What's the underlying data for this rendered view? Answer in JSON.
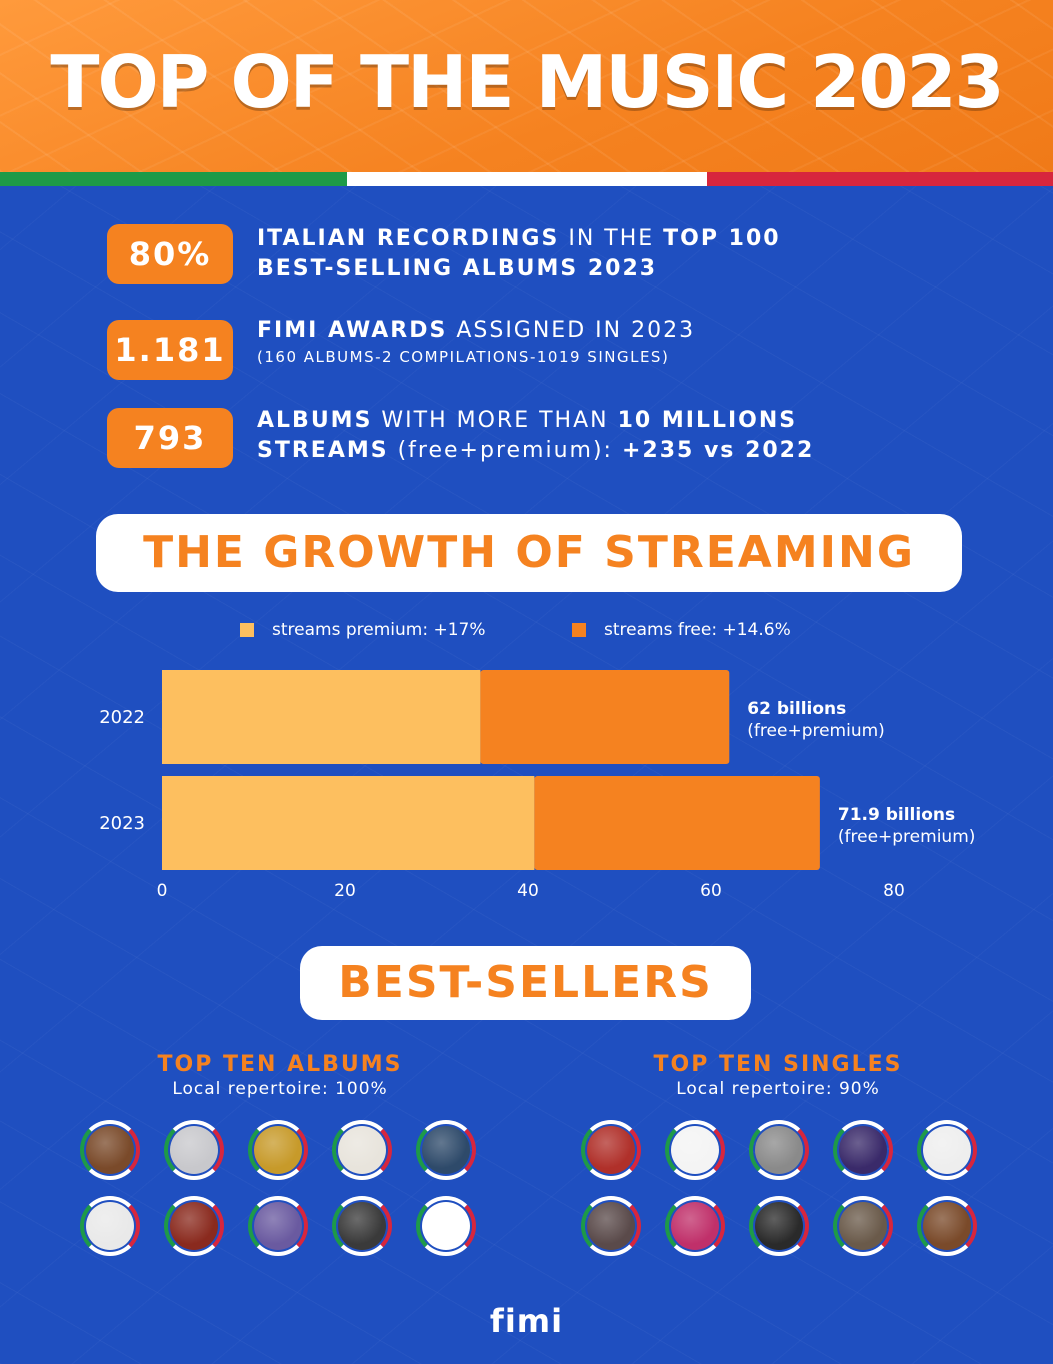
{
  "header": {
    "title": "TOP OF THE MUSIC 2023"
  },
  "stats": [
    {
      "value": "80%",
      "strong1": "ITALIAN RECORDINGS",
      "normal1": " IN THE ",
      "strong2": "TOP 100",
      "line2": "BEST-SELLING ALBUMS 2023"
    },
    {
      "value": "1.181",
      "strong1": "FIMI AWARDS",
      "normal1": " ASSIGNED IN 2023",
      "sub": "(160 ALBUMS-2 COMPILATIONS-1019 SINGLES)"
    },
    {
      "value": "793",
      "strong1": "ALBUMS",
      "normal1": " WITH MORE THAN ",
      "strong2": "10 MILLIONS",
      "line2a": "STREAMS",
      "line2b": " (free+premium): ",
      "line2c": "+235 vs 2022"
    }
  ],
  "growth_title": "THE GROWTH OF STREAMING",
  "legend": [
    {
      "label": "streams premium: +17%",
      "color": "#fdbf5f"
    },
    {
      "label": "streams free: +14.6%",
      "color": "#f58220"
    }
  ],
  "chart_data": {
    "type": "bar",
    "orientation": "horizontal",
    "stacked": true,
    "categories": [
      "2022",
      "2023"
    ],
    "series": [
      {
        "name": "streams premium: +17%",
        "values": [
          34.8,
          40.7
        ],
        "color": "#fdbf5f"
      },
      {
        "name": "streams free: +14.6%",
        "values": [
          27.2,
          31.2
        ],
        "color": "#f58220"
      }
    ],
    "totals": [
      62,
      71.9
    ],
    "data_labels": [
      {
        "line1": "62 billions",
        "line2": "(free+premium)"
      },
      {
        "line1": "71.9 billions",
        "line2": "(free+premium)"
      }
    ],
    "xlim": [
      0,
      80
    ],
    "xticks": [
      0,
      20,
      40,
      60,
      80
    ],
    "grid": false
  },
  "best_title": "BEST-SELLERS",
  "albums": {
    "title": "TOP TEN ALBUMS",
    "subtitle": "Local repertoire: 100%"
  },
  "singles": {
    "title": "TOP TEN SINGLES",
    "subtitle": "Local repertoire: 90%"
  },
  "album_covers": [
    "#7a4a2a",
    "#c8c8cc",
    "#c79a2a",
    "#e8e4dc",
    "#2e4a6a",
    "#e9e9e9",
    "#8a2a1e",
    "#6a5aa0",
    "#3a3a3a",
    "#ffffff"
  ],
  "single_covers": [
    "#b0302a",
    "#f4f4f4",
    "#8a8a8a",
    "#3a2a6a",
    "#eeeeee",
    "#5a4a4a",
    "#c0306a",
    "#2a2a2a",
    "#6a5a4a",
    "#7a4a2a"
  ],
  "logo": "fimi"
}
